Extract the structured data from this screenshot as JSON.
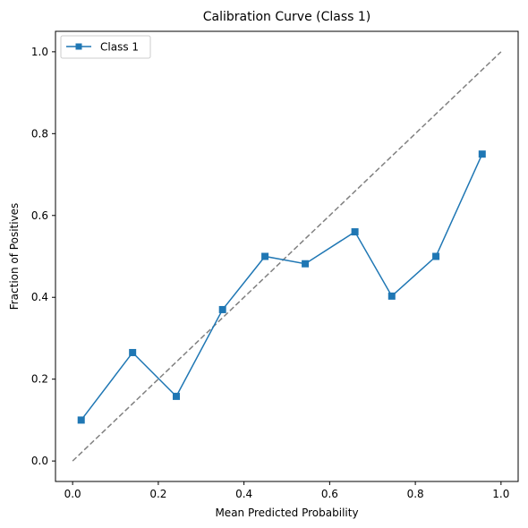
{
  "chart_data": {
    "type": "line",
    "title": "Calibration Curve (Class 1)",
    "xlabel": "Mean Predicted Probability",
    "ylabel": "Fraction of Positives",
    "xlim": [
      -0.04,
      1.04
    ],
    "ylim": [
      -0.05,
      1.05
    ],
    "xticks": [
      0.0,
      0.2,
      0.4,
      0.6,
      0.8,
      1.0
    ],
    "yticks": [
      0.0,
      0.2,
      0.4,
      0.6,
      0.8,
      1.0
    ],
    "xtick_labels": [
      "0.0",
      "0.2",
      "0.4",
      "0.6",
      "0.8",
      "1.0"
    ],
    "ytick_labels": [
      "0.0",
      "0.2",
      "0.4",
      "0.6",
      "0.8",
      "1.0"
    ],
    "grid": false,
    "legend_position": "top-left",
    "series": [
      {
        "name": "Class 1",
        "color": "#1f77b4",
        "marker": "square",
        "x": [
          0.02,
          0.14,
          0.242,
          0.35,
          0.449,
          0.543,
          0.659,
          0.745,
          0.848,
          0.956
        ],
        "y": [
          0.1,
          0.265,
          0.158,
          0.37,
          0.5,
          0.482,
          0.56,
          0.403,
          0.5,
          0.75
        ]
      }
    ],
    "reference_line": {
      "x": [
        0.0,
        1.0
      ],
      "y": [
        0.0,
        1.0
      ],
      "color": "#808080",
      "style": "dashed"
    }
  }
}
